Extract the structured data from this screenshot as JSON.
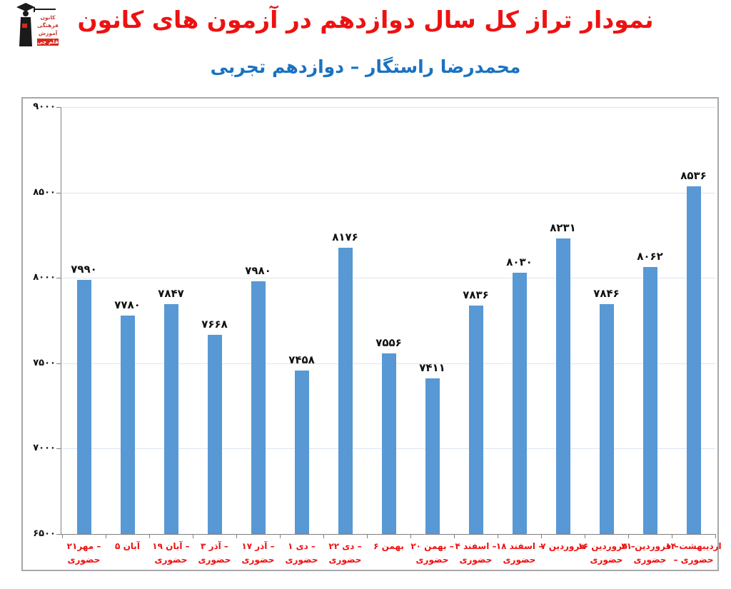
{
  "header": {
    "title": "نمودار تراز کل سال دوازدهم در آزمون های کانون",
    "subtitle": "محمدرضا راستگار – دوازدهم تجربی"
  },
  "logo": {
    "alt": "کانون فرهنگی آموزش قلم چی",
    "lines": [
      "کانون",
      "فرهنگی",
      "آموزش"
    ],
    "badge": "قلم چی"
  },
  "chart_data": {
    "type": "bar",
    "title": "نمودار تراز کل سال دوازدهم در آزمون های کانون",
    "subtitle": "محمدرضا راستگار – دوازدهم تجربی",
    "xlabel": "",
    "ylabel": "",
    "ylim": [
      6500,
      9000
    ],
    "grid": true,
    "legend": "none",
    "categories": [
      "۲۱مهر – حضوری",
      "۵ آبان",
      "۱۹ آبان – حضوری",
      "۳ آذر – حضوری",
      "۱۷ آذر – حضوری",
      "۱ دی – حضوری",
      "۲۲ دی – حضوری",
      "۶ بهمن",
      "۲۰ بهمن – حضوری",
      "۴ اسفند – حضوری",
      "۱۸ اسفند – حضوری",
      "۷ فروردین",
      "۱۶ فروردین – حضوری",
      "۳۱ فروردین – حضوری",
      "۱۴ اردیبهشت – حضوری"
    ],
    "x_tick_lines": [
      [
        "۲۱مهر –",
        "حضوری"
      ],
      [
        "۵ آبان",
        ""
      ],
      [
        "۱۹ آبان –",
        "حضوری"
      ],
      [
        "۳ آذر –",
        "حضوری"
      ],
      [
        "۱۷ آذر –",
        "حضوری"
      ],
      [
        "۱ دی –",
        "حضوری"
      ],
      [
        "۲۲ دی –",
        "حضوری"
      ],
      [
        "۶ بهمن",
        ""
      ],
      [
        "۲۰ بهمن –",
        "حضوری"
      ],
      [
        "۴ اسفند –",
        "حضوری"
      ],
      [
        "۱۸ اسفند –",
        "حضوری"
      ],
      [
        "۷ فروردین",
        ""
      ],
      [
        "۱۶ فروردین –",
        "حضوری"
      ],
      [
        "۳۱ فروردین –",
        "حضوری"
      ],
      [
        "۱۴ اردیبهشت",
        "– حضوری"
      ]
    ],
    "values": [
      7990,
      7780,
      7847,
      7668,
      7980,
      7458,
      8176,
      7556,
      7411,
      7836,
      8030,
      8231,
      7846,
      8062,
      8536
    ],
    "value_labels": [
      "۷۹۹۰",
      "۷۷۸۰",
      "۷۸۴۷",
      "۷۶۶۸",
      "۷۹۸۰",
      "۷۴۵۸",
      "۸۱۷۶",
      "۷۵۵۶",
      "۷۴۱۱",
      "۷۸۳۶",
      "۸۰۳۰",
      "۸۲۳۱",
      "۷۸۴۶",
      "۸۰۶۲",
      "۸۵۳۶"
    ],
    "y_ticks": {
      "values": [
        9000,
        8500,
        8000,
        7500,
        7000,
        6500
      ],
      "labels": [
        "۹۰۰۰",
        "۸۵۰۰",
        "۸۰۰۰",
        "۷۵۰۰",
        "۷۰۰۰",
        "۶۵۰۰"
      ]
    }
  },
  "colors": {
    "title": "#ee1111",
    "subtitle": "#1a72c2",
    "bar": "#5898d4",
    "gridline": "#dbe5f1",
    "axis": "#808080",
    "chart_border": "#a8a8a8",
    "value_label": "#111111",
    "x_label": "#ee1111",
    "y_label": "#111111",
    "logo_red": "#d52b1e"
  }
}
